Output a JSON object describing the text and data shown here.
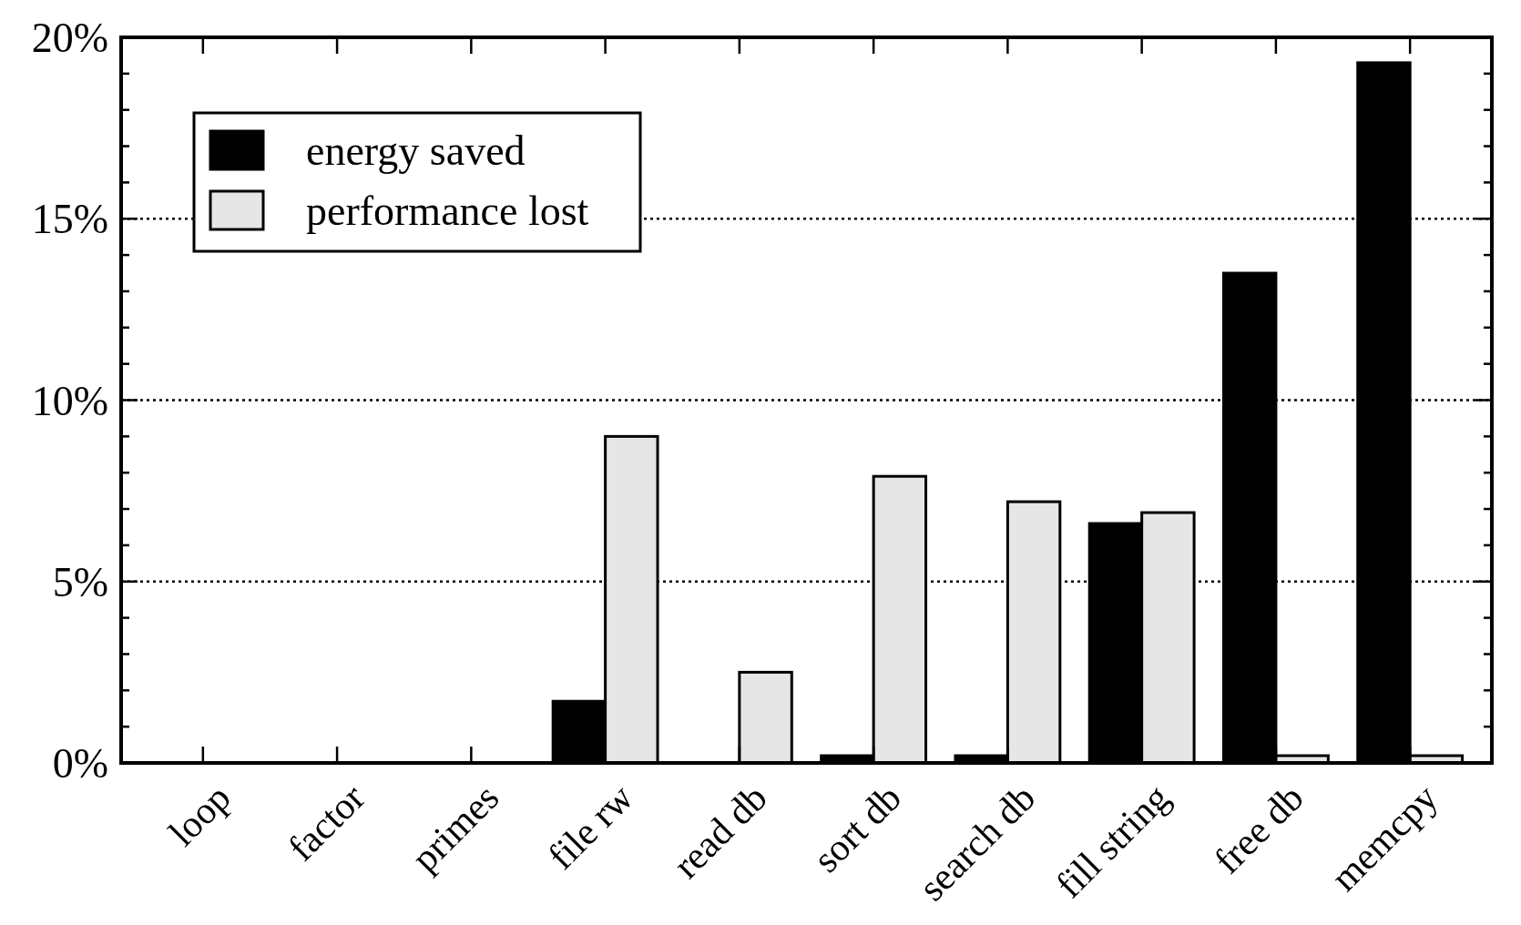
{
  "chart_data": {
    "type": "bar",
    "categories": [
      "loop",
      "factor",
      "primes",
      "file rw",
      "read db",
      "sort db",
      "search db",
      "fill string",
      "free db",
      "memcpy"
    ],
    "series": [
      {
        "name": "energy saved",
        "color": "#000000",
        "values": [
          0,
          0,
          0,
          1.7,
          0,
          0.2,
          0.2,
          6.6,
          13.5,
          19.3
        ]
      },
      {
        "name": "performance lost",
        "color": "#e6e6e6",
        "values": [
          0,
          0,
          0,
          9.0,
          2.5,
          7.9,
          7.2,
          6.9,
          0.2,
          0.2
        ]
      }
    ],
    "ylim": [
      0,
      20
    ],
    "yticks": [
      {
        "value": 0,
        "label": "0%"
      },
      {
        "value": 1,
        "label": null
      },
      {
        "value": 2,
        "label": null
      },
      {
        "value": 3,
        "label": null
      },
      {
        "value": 4,
        "label": null
      },
      {
        "value": 5,
        "label": "5%"
      },
      {
        "value": 6,
        "label": null
      },
      {
        "value": 7,
        "label": null
      },
      {
        "value": 8,
        "label": null
      },
      {
        "value": 9,
        "label": null
      },
      {
        "value": 10,
        "label": "10%"
      },
      {
        "value": 11,
        "label": null
      },
      {
        "value": 12,
        "label": null
      },
      {
        "value": 13,
        "label": null
      },
      {
        "value": 14,
        "label": null
      },
      {
        "value": 15,
        "label": "15%"
      },
      {
        "value": 16,
        "label": null
      },
      {
        "value": 17,
        "label": null
      },
      {
        "value": 18,
        "label": null
      },
      {
        "value": 19,
        "label": null
      },
      {
        "value": 20,
        "label": "20%"
      }
    ],
    "grid": "y",
    "legend": "top left"
  }
}
